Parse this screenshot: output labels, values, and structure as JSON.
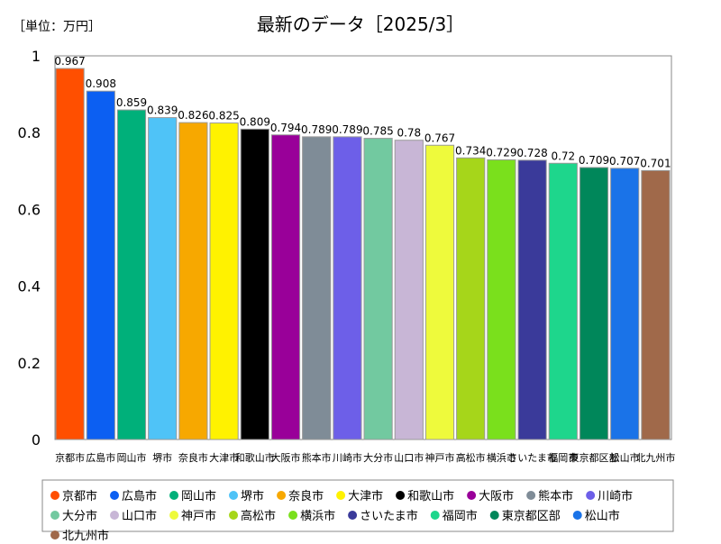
{
  "chart_data": {
    "type": "bar",
    "title": "最新のデータ［2025/3］",
    "unit_label": "［単位：万円］",
    "ylim": [
      0,
      1
    ],
    "yticks": [
      {
        "value": 0,
        "label": "0"
      },
      {
        "value": 0.2,
        "label": "0.2"
      },
      {
        "value": 0.4,
        "label": "0.4"
      },
      {
        "value": 0.6,
        "label": "0.6"
      },
      {
        "value": 0.8,
        "label": "0.8"
      },
      {
        "value": 1,
        "label": "1"
      }
    ],
    "grid": false,
    "legend_position": "bottom",
    "categories": [
      "京都市",
      "広島市",
      "岡山市",
      "堺市",
      "奈良市",
      "大津市",
      "和歌山市",
      "大阪市",
      "熊本市",
      "川崎市",
      "大分市",
      "山口市",
      "神戸市",
      "高松市",
      "横浜市",
      "さいたま市",
      "福岡市",
      "東京都区部",
      "松山市",
      "北九州市"
    ],
    "values": [
      0.967,
      0.908,
      0.859,
      0.839,
      0.826,
      0.825,
      0.809,
      0.794,
      0.789,
      0.789,
      0.785,
      0.78,
      0.767,
      0.734,
      0.729,
      0.728,
      0.72,
      0.709,
      0.707,
      0.701
    ],
    "value_labels": [
      "0.967",
      "0.908",
      "0.859",
      "0.839",
      "0.826",
      "0.825",
      "0.809",
      "0.794",
      "0.789",
      "0.789",
      "0.785",
      "0.78",
      "0.767",
      "0.734",
      "0.729",
      "0.728",
      "0.72",
      "0.709",
      "0.707",
      "0.701"
    ],
    "colors": [
      "#ff4f00",
      "#0c5ff2",
      "#00b07a",
      "#4fc3f7",
      "#f7a800",
      "#fff200",
      "#000000",
      "#990099",
      "#7f8c97",
      "#6d5fe8",
      "#72c9a0",
      "#c8b6d6",
      "#eefa3c",
      "#a6d61a",
      "#7ae01c",
      "#3a3a9a",
      "#1ed68c",
      "#00875a",
      "#1a73e8",
      "#a0694a"
    ]
  }
}
